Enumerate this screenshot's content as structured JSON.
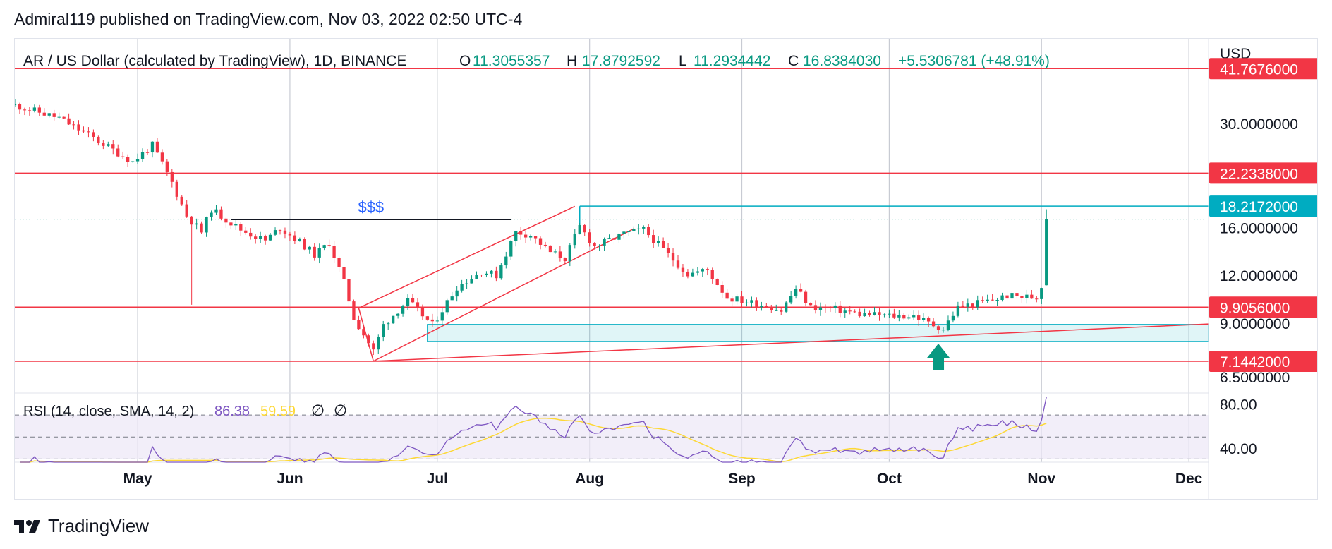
{
  "publisher_line": "Admiral119 published on TradingView.com, Nov 03, 2022 02:50 UTC-4",
  "footer": {
    "brand": "TradingView"
  },
  "colors": {
    "up": "#089981",
    "down": "#f23645",
    "level": "#f23645",
    "zone": "#00acc1",
    "rsi": "#7e57c2",
    "rsi_ma": "#fdd835",
    "rsi_band": "#ede7f6",
    "grid": "#c8cbd3",
    "annotation": "#2962ff",
    "arrow": "#089981"
  },
  "chart_data": {
    "type": "candlestick",
    "header": {
      "symbol": "AR / US Dollar (calculated by TradingView), 1D, BINANCE",
      "o_label": "O",
      "o": "11.3055357",
      "h_label": "H",
      "h": "17.8792592",
      "l_label": "L",
      "l": "11.2934442",
      "c_label": "C",
      "c": "16.8384030",
      "change": "+5.5306781 (+48.91%)"
    },
    "currency": "USD",
    "y_scale": "log",
    "ylim": [
      5.9,
      50
    ],
    "y_ticks": [
      "30.0000000",
      "16.0000000",
      "12.0000000",
      "9.0000000",
      "6.5000000"
    ],
    "x_range": [
      "2022-04-06",
      "2022-12-05"
    ],
    "x_ticks": [
      {
        "label": "May",
        "date": "2022-05-01"
      },
      {
        "label": "Jun",
        "date": "2022-06-01"
      },
      {
        "label": "Jul",
        "date": "2022-07-01"
      },
      {
        "label": "Aug",
        "date": "2022-08-01"
      },
      {
        "label": "Sep",
        "date": "2022-09-01"
      },
      {
        "label": "Oct",
        "date": "2022-10-01"
      },
      {
        "label": "Nov",
        "date": "2022-11-01"
      },
      {
        "label": "Dec",
        "date": "2022-12-01"
      }
    ],
    "levels": [
      {
        "value": 41.7676,
        "label": "41.7676000"
      },
      {
        "value": 22.2338,
        "label": "22.2338000"
      },
      {
        "value": 9.9056,
        "label": "9.9056000"
      },
      {
        "value": 7.1442,
        "label": "7.1442000"
      }
    ],
    "zone_top": {
      "value": 18.2172,
      "label": "18.2172000",
      "start": "2022-07-30"
    },
    "demand_zone": {
      "start": "2022-06-29",
      "top": 8.92,
      "bottom": 8.05
    },
    "current_price": 16.838,
    "liquidity_line": {
      "start": "2022-05-20",
      "end": "2022-07-16",
      "value": 16.8,
      "label": "$$$"
    },
    "channel": {
      "upper": [
        [
          "2022-06-15",
          9.85
        ],
        [
          "2022-07-29",
          18.2
        ]
      ],
      "lower": [
        [
          "2022-06-18",
          7.15
        ],
        [
          "2022-08-10",
          15.9
        ]
      ]
    },
    "trendline": [
      [
        "2022-06-18",
        7.15
      ],
      [
        "2022-12-05",
        8.95
      ]
    ],
    "arrow_date": "2022-10-11",
    "anchors": [
      [
        "2022-04-06",
        33.5
      ],
      [
        "2022-04-15",
        31.0
      ],
      [
        "2022-04-22",
        27.5
      ],
      [
        "2022-04-30",
        23.8
      ],
      [
        "2022-05-04",
        26.3
      ],
      [
        "2022-05-08",
        21.0
      ],
      [
        "2022-05-11",
        17.2
      ],
      [
        "2022-05-14",
        15.6
      ],
      [
        "2022-05-16",
        17.9
      ],
      [
        "2022-05-22",
        15.8
      ],
      [
        "2022-05-27",
        14.8
      ],
      [
        "2022-05-30",
        16.0
      ],
      [
        "2022-06-03",
        14.7
      ],
      [
        "2022-06-06",
        13.6
      ],
      [
        "2022-06-09",
        14.6
      ],
      [
        "2022-06-12",
        11.5
      ],
      [
        "2022-06-14",
        9.3
      ],
      [
        "2022-06-18",
        7.6
      ],
      [
        "2022-06-20",
        8.9
      ],
      [
        "2022-06-25",
        10.3
      ],
      [
        "2022-06-30",
        8.9
      ],
      [
        "2022-07-05",
        11.2
      ],
      [
        "2022-07-10",
        12.3
      ],
      [
        "2022-07-13",
        12.0
      ],
      [
        "2022-07-17",
        15.6
      ],
      [
        "2022-07-20",
        15.3
      ],
      [
        "2022-07-24",
        13.8
      ],
      [
        "2022-07-27",
        13.3
      ],
      [
        "2022-07-30",
        16.1
      ],
      [
        "2022-08-02",
        14.3
      ],
      [
        "2022-08-08",
        15.4
      ],
      [
        "2022-08-12",
        15.8
      ],
      [
        "2022-08-17",
        13.6
      ],
      [
        "2022-08-21",
        12.1
      ],
      [
        "2022-08-25",
        12.4
      ],
      [
        "2022-08-29",
        10.5
      ],
      [
        "2022-09-06",
        10.0
      ],
      [
        "2022-09-09",
        9.7
      ],
      [
        "2022-09-12",
        11.1
      ],
      [
        "2022-09-15",
        9.9
      ],
      [
        "2022-09-20",
        9.8
      ],
      [
        "2022-09-25",
        9.5
      ],
      [
        "2022-10-01",
        9.4
      ],
      [
        "2022-10-06",
        9.4
      ],
      [
        "2022-10-09",
        9.0
      ],
      [
        "2022-10-12",
        8.7
      ],
      [
        "2022-10-15",
        9.9
      ],
      [
        "2022-10-20",
        10.2
      ],
      [
        "2022-10-25",
        10.6
      ],
      [
        "2022-10-31",
        10.5
      ],
      [
        "2022-11-01",
        11.3
      ],
      [
        "2022-11-02",
        16.84
      ]
    ],
    "rsi": {
      "label": "RSI (14, close, SMA, 14, 2)",
      "value": "86.38",
      "ma_value": "59.59",
      "ticks": [
        "80.00",
        "40.00"
      ],
      "upper": 70,
      "lower": 30,
      "middle": 50,
      "ylim": [
        27,
        90
      ]
    }
  }
}
